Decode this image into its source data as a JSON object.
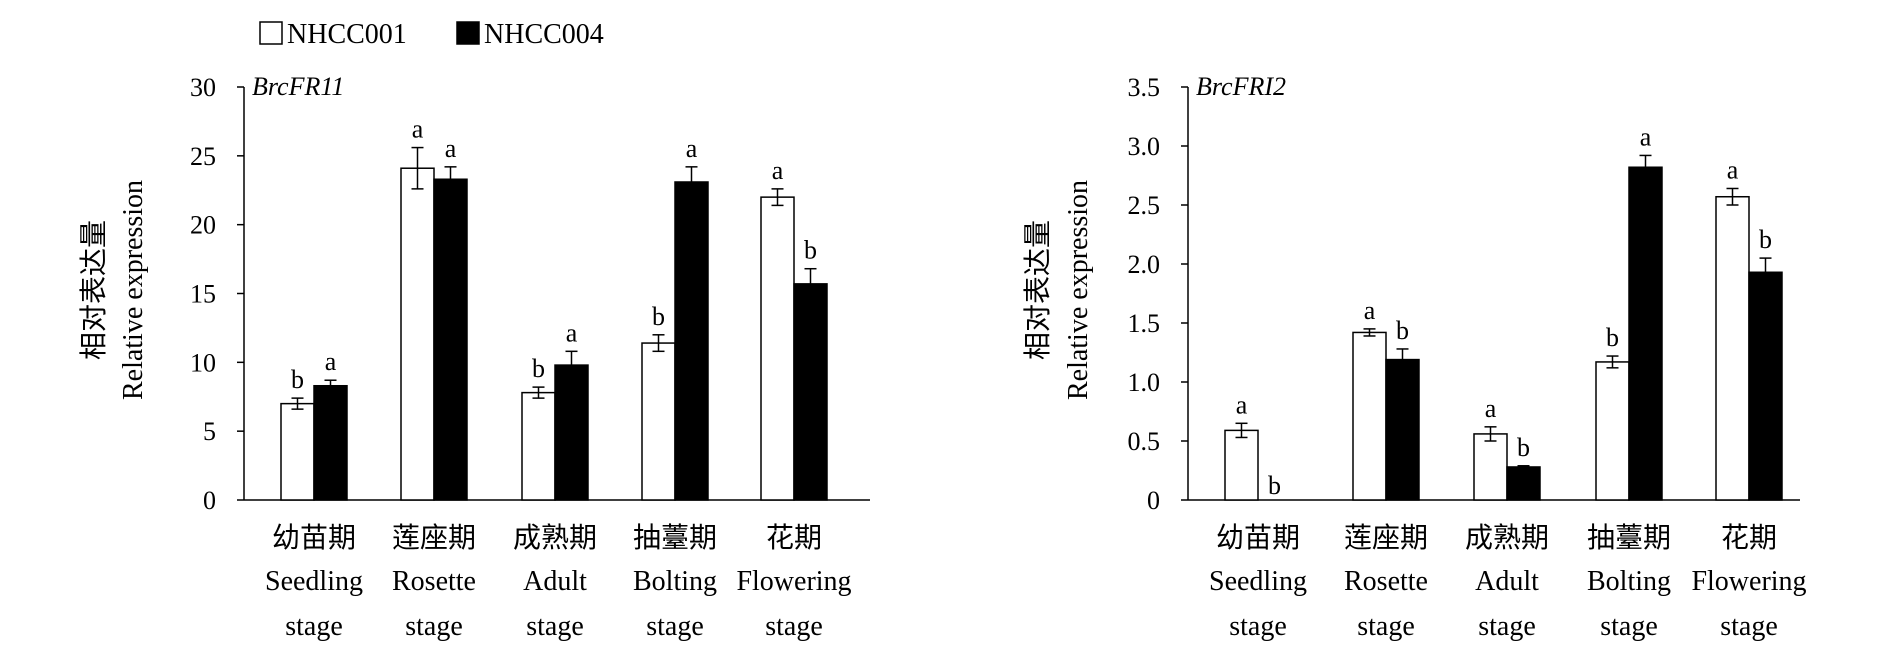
{
  "legend": [
    {
      "name": "NHCC001",
      "color": "#ffffff"
    },
    {
      "name": "NHCC004",
      "color": "#000000"
    }
  ],
  "chart_data": [
    {
      "type": "bar",
      "title": "BrcFR11",
      "ylabel_cn": "相对表达量",
      "ylabel": "Relative expression",
      "ylim": [
        0,
        30
      ],
      "yticks": [
        "0",
        "5",
        "10",
        "15",
        "20",
        "25",
        "30"
      ],
      "categories": [
        {
          "cn": "幼苗期",
          "en1": "Seedling",
          "en2": "stage"
        },
        {
          "cn": "莲座期",
          "en1": "Rosette",
          "en2": "stage"
        },
        {
          "cn": "成熟期",
          "en1": "Adult",
          "en2": "stage"
        },
        {
          "cn": "抽薹期",
          "en1": "Bolting",
          "en2": "stage"
        },
        {
          "cn": "花期",
          "en1": "Flowering",
          "en2": "stage"
        }
      ],
      "series": [
        {
          "name": "NHCC001",
          "values": [
            7.0,
            24.1,
            7.8,
            11.4,
            22.0
          ],
          "errors": [
            0.4,
            1.5,
            0.4,
            0.6,
            0.6
          ],
          "labels": [
            "b",
            "a",
            "b",
            "b",
            "a"
          ]
        },
        {
          "name": "NHCC004",
          "values": [
            8.3,
            23.3,
            9.8,
            23.1,
            15.7
          ],
          "errors": [
            0.4,
            0.9,
            1.0,
            1.1,
            1.1
          ],
          "labels": [
            "a",
            "a",
            "a",
            "a",
            "b"
          ]
        }
      ]
    },
    {
      "type": "bar",
      "title": "BrcFRI2",
      "ylabel_cn": "相对表达量",
      "ylabel": "Relative expression",
      "ylim": [
        0,
        3.5
      ],
      "yticks": [
        "0",
        "0.5",
        "1.0",
        "1.5",
        "2.0",
        "2.5",
        "3.0",
        "3.5"
      ],
      "categories": [
        {
          "cn": "幼苗期",
          "en1": "Seedling",
          "en2": "stage"
        },
        {
          "cn": "莲座期",
          "en1": "Rosette",
          "en2": "stage"
        },
        {
          "cn": "成熟期",
          "en1": "Adult",
          "en2": "stage"
        },
        {
          "cn": "抽薹期",
          "en1": "Bolting",
          "en2": "stage"
        },
        {
          "cn": "花期",
          "en1": "Flowering",
          "en2": "stage"
        }
      ],
      "series": [
        {
          "name": "NHCC001",
          "values": [
            0.59,
            1.42,
            0.56,
            1.17,
            2.57
          ],
          "errors": [
            0.06,
            0.03,
            0.06,
            0.05,
            0.07
          ],
          "labels": [
            "a",
            "a",
            "a",
            "b",
            "a"
          ]
        },
        {
          "name": "NHCC004",
          "values": [
            0.0,
            1.19,
            0.28,
            2.82,
            1.93
          ],
          "errors": [
            0.0,
            0.09,
            0.01,
            0.1,
            0.12
          ],
          "labels": [
            "b",
            "b",
            "b",
            "a",
            "b"
          ]
        }
      ]
    }
  ]
}
